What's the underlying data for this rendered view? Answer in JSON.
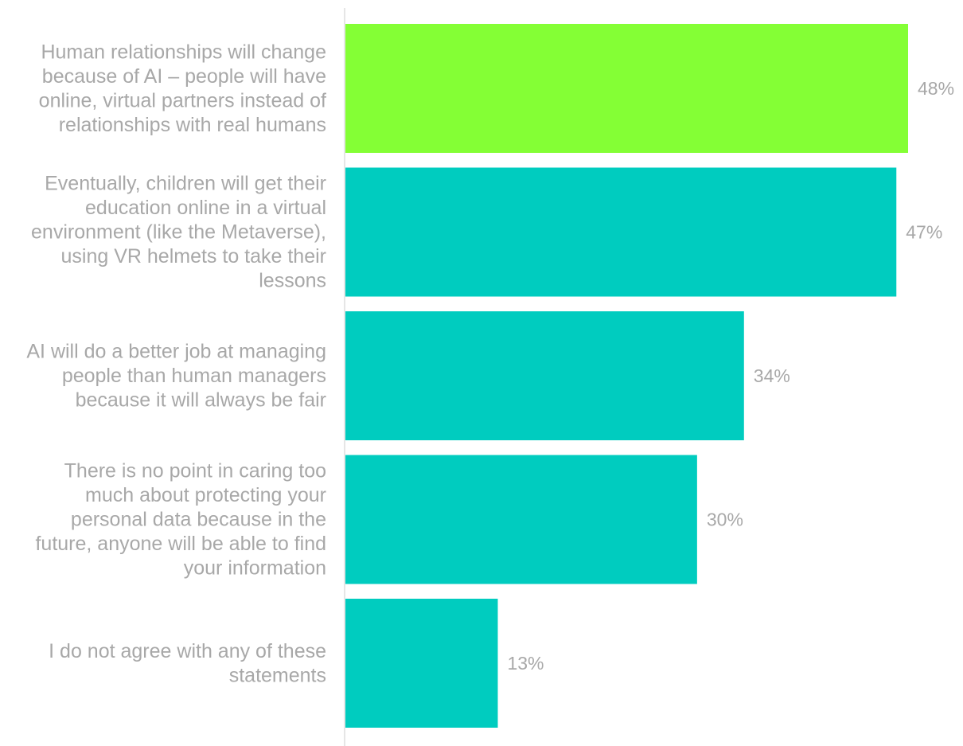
{
  "chart_data": {
    "type": "bar",
    "orientation": "horizontal",
    "categories": [
      "Human relationships will change because of AI – people will have online, virtual partners instead of relationships with real humans",
      "Eventually, children will get their education online in a virtual environment (like the Metaverse), using VR helmets to take their lessons",
      "AI will do a better job at managing people than human managers because it will always be fair",
      "There is no point in caring too much about protecting your personal data because in the future, anyone will be able to find your information",
      "I do not agree with any of these statements"
    ],
    "category_lines": [
      [
        "Human relationships will change",
        "because of AI – people will have",
        "online, virtual partners instead of",
        "relationships with real humans"
      ],
      [
        "Eventually, children will get their",
        "education online in a virtual",
        "environment (like the Metaverse),",
        "using VR helmets to take their",
        "lessons"
      ],
      [
        "AI will do a better job at managing",
        "people than human managers",
        "because it will always be fair"
      ],
      [
        "There is no point in caring too",
        "much about protecting your",
        "personal data because in the",
        "future, anyone will be able to find",
        "your information"
      ],
      [
        "I do not agree with any of these",
        "statements"
      ]
    ],
    "values": [
      48,
      47,
      34,
      30,
      13
    ],
    "value_labels": [
      "48%",
      "47%",
      "34%",
      "30%",
      "13%"
    ],
    "bar_colors": [
      "#84ff35",
      "#00ccbf",
      "#00ccbf",
      "#00ccbf",
      "#00ccbf"
    ],
    "xlim": [
      0,
      48
    ],
    "grid": false,
    "legend": "none",
    "title": "",
    "xlabel": "",
    "ylabel": ""
  },
  "colors": {
    "highlight": "#84ff35",
    "bar": "#00ccbf",
    "text": "#a8a8a8",
    "axis": "#e6e6e6"
  }
}
